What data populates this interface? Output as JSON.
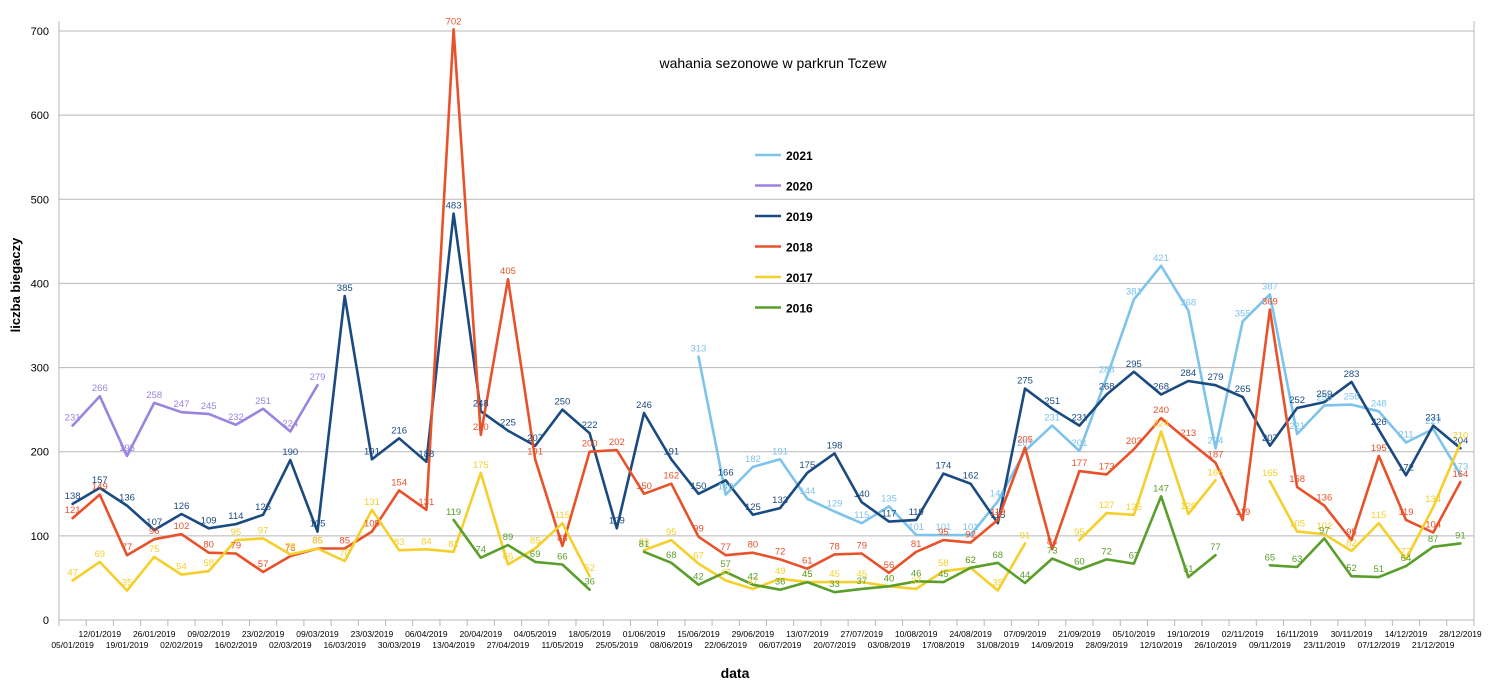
{
  "chart_data": {
    "type": "line",
    "title": "wahania sezonowe w parkrun Tczew",
    "xlabel": "data",
    "ylabel": "liczba biegaczy",
    "ylim": [
      0,
      700
    ],
    "yticks": [
      0,
      100,
      200,
      300,
      400,
      500,
      600,
      700
    ],
    "grid": "horizontal",
    "legend_position": "center-left",
    "x": [
      "05/01/2019",
      "12/01/2019",
      "19/01/2019",
      "26/01/2019",
      "02/02/2019",
      "09/02/2019",
      "16/02/2019",
      "23/02/2019",
      "02/03/2019",
      "09/03/2019",
      "16/03/2019",
      "23/03/2019",
      "30/03/2019",
      "06/04/2019",
      "13/04/2019",
      "20/04/2019",
      "27/04/2019",
      "04/05/2019",
      "11/05/2019",
      "18/05/2019",
      "25/05/2019",
      "01/06/2019",
      "08/06/2019",
      "15/06/2019",
      "22/06/2019",
      "29/06/2019",
      "06/07/2019",
      "13/07/2019",
      "20/07/2019",
      "27/07/2019",
      "03/08/2019",
      "10/08/2019",
      "17/08/2019",
      "24/08/2019",
      "31/08/2019",
      "07/09/2019",
      "14/09/2019",
      "21/09/2019",
      "28/09/2019",
      "05/10/2019",
      "12/10/2019",
      "19/10/2019",
      "26/10/2019",
      "02/11/2019",
      "09/11/2019",
      "16/11/2019",
      "23/11/2019",
      "30/11/2019",
      "07/12/2019",
      "14/12/2019",
      "21/12/2019",
      "28/12/2019"
    ],
    "series": [
      {
        "name": "2021",
        "color": "#7ec3ec",
        "values": [
          null,
          null,
          null,
          null,
          null,
          null,
          null,
          null,
          null,
          null,
          null,
          null,
          null,
          null,
          null,
          null,
          null,
          null,
          null,
          null,
          null,
          null,
          null,
          313,
          149,
          182,
          191,
          144,
          129,
          115,
          135,
          101,
          101,
          101,
          141,
          201,
          231,
          201,
          288,
          381,
          421,
          368,
          204,
          355,
          387,
          221,
          255,
          256,
          248,
          211,
          227,
          173
        ]
      },
      {
        "name": "2020",
        "color": "#9b84e0",
        "values": [
          231,
          266,
          195,
          258,
          247,
          245,
          232,
          251,
          224,
          279,
          null,
          null,
          null,
          null,
          null,
          null,
          null,
          null,
          null,
          null,
          null,
          null,
          null,
          null,
          null,
          null,
          null,
          null,
          null,
          null,
          null,
          null,
          null,
          null,
          null,
          null,
          null,
          null,
          null,
          null,
          null,
          null,
          null,
          null,
          null,
          null,
          null,
          null,
          null,
          null,
          null,
          null
        ]
      },
      {
        "name": "2019",
        "color": "#1a4a80",
        "values": [
          138,
          157,
          136,
          107,
          126,
          109,
          114,
          125,
          190,
          105,
          385,
          191,
          216,
          188,
          483,
          248,
          225,
          207,
          250,
          222,
          109,
          246,
          191,
          150,
          166,
          125,
          133,
          175,
          198,
          140,
          117,
          119,
          174,
          162,
          115,
          275,
          251,
          231,
          268,
          295,
          268,
          284,
          279,
          265,
          207,
          252,
          259,
          283,
          226,
          172,
          231,
          204
        ]
      },
      {
        "name": "2018",
        "color": "#e8522a",
        "values": [
          121,
          149,
          77,
          96,
          102,
          80,
          79,
          57,
          76,
          85,
          85,
          105,
          154,
          131,
          702,
          220,
          405,
          191,
          88,
          200,
          202,
          150,
          162,
          99,
          77,
          80,
          72,
          61,
          78,
          79,
          56,
          81,
          95,
          92,
          119,
          205,
          84,
          177,
          173,
          203,
          240,
          213,
          187,
          119,
          369,
          158,
          136,
          95,
          195,
          119,
          104,
          164
        ]
      },
      {
        "name": "2017",
        "color": "#f5d02c",
        "values": [
          47,
          69,
          35,
          75,
          54,
          58,
          95,
          97,
          78,
          85,
          70,
          131,
          83,
          84,
          81,
          175,
          66,
          85,
          115,
          52,
          null,
          83,
          95,
          67,
          47,
          37,
          49,
          45,
          45,
          45,
          40,
          37,
          58,
          62,
          35,
          91,
          null,
          95,
          127,
          125,
          224,
          126,
          166,
          null,
          165,
          105,
          102,
          82,
          115,
          72,
          134,
          210
        ]
      },
      {
        "name": "2016",
        "color": "#5a9e2c",
        "values": [
          null,
          null,
          null,
          null,
          null,
          null,
          null,
          null,
          null,
          null,
          null,
          null,
          null,
          null,
          119,
          74,
          89,
          69,
          66,
          36,
          null,
          81,
          68,
          42,
          57,
          42,
          36,
          45,
          33,
          37,
          40,
          46,
          45,
          62,
          68,
          44,
          73,
          60,
          72,
          67,
          147,
          51,
          77,
          null,
          65,
          63,
          97,
          52,
          51,
          64,
          87,
          91
        ]
      }
    ]
  }
}
